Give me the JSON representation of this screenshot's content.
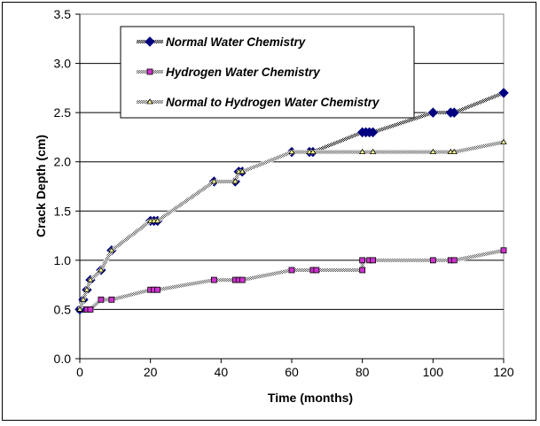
{
  "chart_data": {
    "type": "line",
    "title": "",
    "xlabel": "Time (months)",
    "ylabel": "Crack Depth (cm)",
    "xlim": [
      0,
      120
    ],
    "ylim": [
      0,
      3.5
    ],
    "xticks": [
      0,
      20,
      40,
      60,
      80,
      100,
      120
    ],
    "xtick_labels": [
      "0",
      "20",
      "40",
      "60",
      "80",
      "100",
      "120"
    ],
    "yticks": [
      0,
      0.5,
      1.0,
      1.5,
      2.0,
      2.5,
      3.0,
      3.5
    ],
    "ytick_labels": [
      "0.0",
      "0.5",
      "1.0",
      "1.5",
      "2.0",
      "2.5",
      "3.0",
      "3.5"
    ],
    "grid": "horizontal",
    "legend_position": "top-left",
    "series": [
      {
        "name": "Normal Water Chemistry",
        "marker": "diamond",
        "color": "#000080",
        "x": [
          0,
          1,
          2,
          3,
          6,
          9,
          20,
          21,
          22,
          38,
          44,
          45,
          46,
          60,
          65,
          66,
          80,
          81,
          82,
          83,
          100,
          105,
          106,
          120
        ],
        "y": [
          0.5,
          0.6,
          0.7,
          0.8,
          0.9,
          1.1,
          1.4,
          1.4,
          1.4,
          1.8,
          1.8,
          1.9,
          1.9,
          2.1,
          2.1,
          2.1,
          2.3,
          2.3,
          2.3,
          2.3,
          2.5,
          2.5,
          2.5,
          2.7
        ]
      },
      {
        "name": "Hydrogen Water Chemistry",
        "marker": "square",
        "color": "#CC33CC",
        "x": [
          0,
          1,
          2,
          3,
          6,
          9,
          20,
          21,
          22,
          38,
          44,
          45,
          46,
          60,
          66,
          67,
          80,
          80,
          82,
          83,
          100,
          105,
          106,
          120
        ],
        "y": [
          0.5,
          0.5,
          0.5,
          0.5,
          0.6,
          0.6,
          0.7,
          0.7,
          0.7,
          0.8,
          0.8,
          0.8,
          0.8,
          0.9,
          0.9,
          0.9,
          0.9,
          1.0,
          1.0,
          1.0,
          1.0,
          1.0,
          1.0,
          1.1
        ]
      },
      {
        "name": "Normal to Hydrogen Water Chemistry",
        "marker": "triangle",
        "color": "#FFFF99",
        "x": [
          0,
          1,
          2,
          3,
          6,
          9,
          20,
          21,
          22,
          38,
          44,
          45,
          46,
          60,
          65,
          66,
          80,
          83,
          100,
          105,
          106,
          120
        ],
        "y": [
          0.5,
          0.6,
          0.7,
          0.8,
          0.9,
          1.1,
          1.4,
          1.4,
          1.4,
          1.8,
          1.8,
          1.9,
          1.9,
          2.1,
          2.1,
          2.1,
          2.1,
          2.1,
          2.1,
          2.1,
          2.1,
          2.2
        ]
      }
    ]
  }
}
